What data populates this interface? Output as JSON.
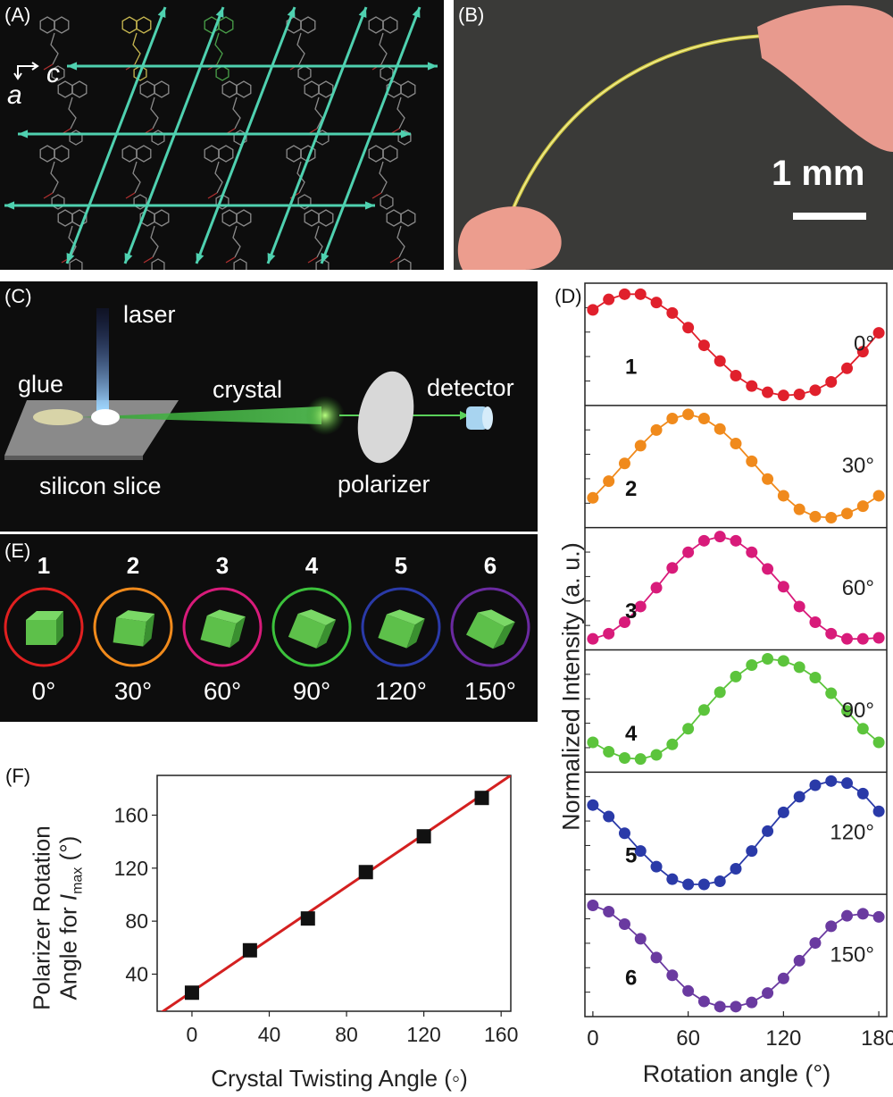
{
  "panels": {
    "A": {
      "label": "(A)",
      "axis_a": "a",
      "axis_c": "c"
    },
    "B": {
      "label": "(B)",
      "scale_text": "1 mm"
    },
    "C": {
      "label": "(C)",
      "laser": "laser",
      "glue": "glue",
      "crystal": "crystal",
      "detector": "detector",
      "silicon": "silicon slice",
      "polarizer": "polarizer"
    },
    "E": {
      "label": "(E)",
      "items": [
        {
          "num": "1",
          "angle": "0°",
          "color": "#e02020"
        },
        {
          "num": "2",
          "angle": "30°",
          "color": "#f08a1c"
        },
        {
          "num": "3",
          "angle": "60°",
          "color": "#d81b7a"
        },
        {
          "num": "4",
          "angle": "90°",
          "color": "#3cc23c"
        },
        {
          "num": "5",
          "angle": "120°",
          "color": "#2a3aa8"
        },
        {
          "num": "6",
          "angle": "150°",
          "color": "#6a2aa0"
        }
      ]
    },
    "D": {
      "label": "(D)",
      "ylabel": "Normalized Intensity (a. u.)",
      "xlabel": "Rotation angle (°)"
    },
    "F": {
      "label": "(F)",
      "xlabel": "Crystal Twisting Angle (◦)",
      "ylabel_line1": "Polarizer Rotation",
      "ylabel_line2_prefix": "Angle for ",
      "ylabel_I": "I",
      "ylabel_sub": "max",
      "ylabel_suffix": " (°)"
    }
  },
  "chart_data": [
    {
      "type": "line",
      "panel": "D",
      "xlabel": "Rotation angle (°)",
      "ylabel": "Normalized Intensity (a. u.)",
      "xlim": [
        -5,
        185
      ],
      "xticks": [
        "0",
        "60",
        "120",
        "180"
      ],
      "x": [
        0,
        10,
        20,
        30,
        40,
        50,
        60,
        70,
        80,
        90,
        100,
        110,
        120,
        130,
        140,
        150,
        160,
        170,
        180
      ],
      "series": [
        {
          "label": "1",
          "angle": "0°",
          "color": "#e0202c",
          "values": [
            0.83,
            0.93,
            0.98,
            0.98,
            0.9,
            0.8,
            0.66,
            0.49,
            0.34,
            0.2,
            0.1,
            0.04,
            0.01,
            0.02,
            0.06,
            0.14,
            0.27,
            0.43,
            0.61
          ]
        },
        {
          "label": "2",
          "angle": "30°",
          "color": "#f08a1c",
          "values": [
            0.2,
            0.36,
            0.53,
            0.7,
            0.85,
            0.96,
            1.0,
            0.96,
            0.86,
            0.72,
            0.55,
            0.38,
            0.22,
            0.09,
            0.02,
            0.01,
            0.05,
            0.12,
            0.22
          ]
        },
        {
          "label": "3",
          "angle": "60°",
          "color": "#d81b7a",
          "values": [
            0.02,
            0.07,
            0.18,
            0.33,
            0.51,
            0.7,
            0.85,
            0.96,
            1.0,
            0.96,
            0.85,
            0.69,
            0.52,
            0.33,
            0.18,
            0.07,
            0.02,
            0.02,
            0.03
          ]
        },
        {
          "label": "4",
          "angle": "90°",
          "color": "#5cc43c",
          "values": [
            0.2,
            0.11,
            0.05,
            0.04,
            0.08,
            0.18,
            0.33,
            0.51,
            0.68,
            0.83,
            0.94,
            1.0,
            0.98,
            0.92,
            0.82,
            0.67,
            0.5,
            0.33,
            0.2
          ]
        },
        {
          "label": "5",
          "angle": "120°",
          "color": "#2a3aa8",
          "values": [
            0.77,
            0.66,
            0.5,
            0.33,
            0.18,
            0.06,
            0.01,
            0.01,
            0.04,
            0.16,
            0.33,
            0.52,
            0.7,
            0.85,
            0.96,
            1.0,
            0.98,
            0.88,
            0.71
          ]
        },
        {
          "label": "6",
          "angle": "150°",
          "color": "#6a3aa0",
          "values": [
            0.98,
            0.92,
            0.8,
            0.66,
            0.48,
            0.31,
            0.16,
            0.06,
            0.01,
            0.01,
            0.05,
            0.14,
            0.28,
            0.45,
            0.62,
            0.78,
            0.88,
            0.9,
            0.87
          ]
        }
      ]
    },
    {
      "type": "scatter",
      "panel": "F",
      "xlabel": "Crystal Twisting Angle (◦)",
      "ylabel": "Polarizer Rotation Angle for Imax (°)",
      "xlim": [
        -18,
        165
      ],
      "ylim": [
        12,
        190
      ],
      "xticks": [
        0,
        40,
        80,
        120,
        160
      ],
      "yticks": [
        40,
        80,
        120,
        160
      ],
      "points": {
        "x": [
          0,
          30,
          60,
          90,
          120,
          150
        ],
        "y": [
          26,
          58,
          82,
          117,
          144,
          173
        ]
      },
      "fit": {
        "x": [
          -20,
          170
        ],
        "y": [
          7,
          195
        ],
        "color": "#d42020"
      }
    }
  ]
}
